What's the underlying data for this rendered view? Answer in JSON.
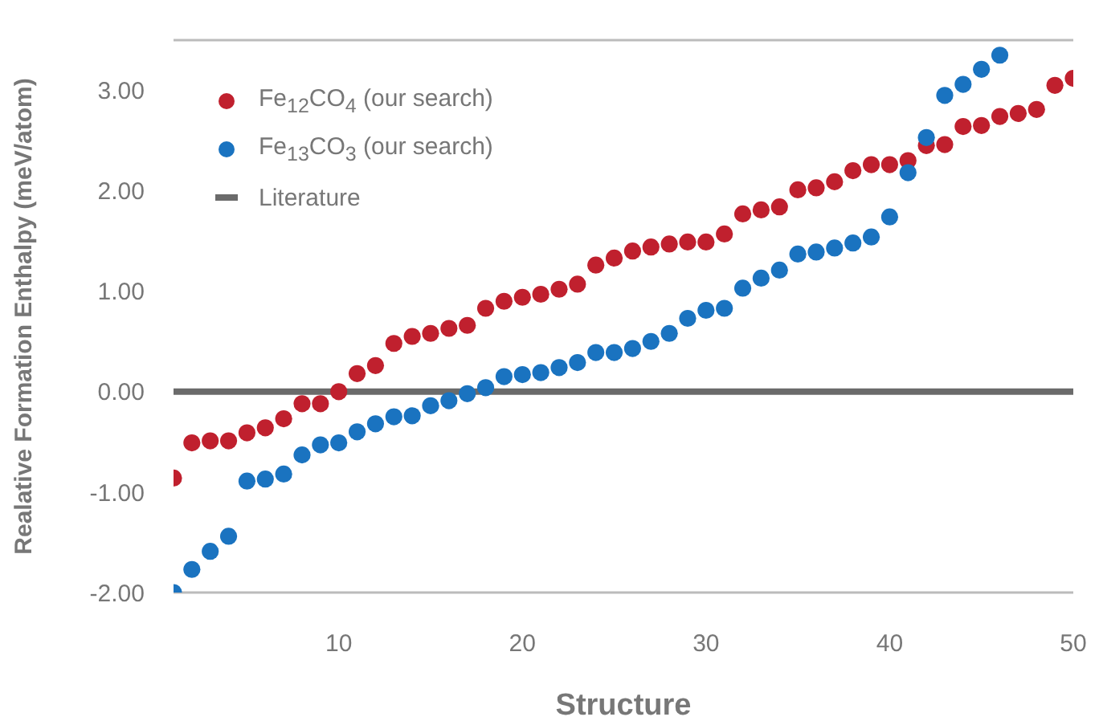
{
  "chart_data": {
    "type": "scatter",
    "xlabel": "Structure",
    "ylabel": "Realative Formation Enthalpy (meV/atom)",
    "xlim": [
      1,
      50
    ],
    "xticks": [
      10,
      20,
      30,
      40,
      50
    ],
    "ylim": [
      -2,
      3.5
    ],
    "yticks": [
      {
        "value": -2,
        "label": "-2.00"
      },
      {
        "value": -1,
        "label": "-1.00"
      },
      {
        "value": 0,
        "label": "0.00"
      },
      {
        "value": 1,
        "label": "1.00"
      },
      {
        "value": 2,
        "label": "2.00"
      },
      {
        "value": 3,
        "label": "3.00"
      }
    ],
    "grid": false,
    "legend": "top left",
    "marker": "circle",
    "series": [
      {
        "name": "Fe$_{12}$CO$_{4}$  (our search)",
        "color": "#c0202e",
        "x": [
          1,
          2,
          3,
          4,
          5,
          6,
          7,
          8,
          9,
          10,
          11,
          12,
          13,
          14,
          15,
          16,
          17,
          18,
          19,
          20,
          21,
          22,
          23,
          24,
          25,
          26,
          27,
          28,
          29,
          30,
          31,
          32,
          33,
          34,
          35,
          36,
          37,
          38,
          39,
          40,
          41,
          42,
          43,
          44,
          45,
          46,
          47,
          48,
          49,
          50
        ],
        "values": [
          -0.86,
          -0.51,
          -0.49,
          -0.49,
          -0.41,
          -0.36,
          -0.27,
          -0.12,
          -0.12,
          0.0,
          0.18,
          0.26,
          0.48,
          0.55,
          0.58,
          0.63,
          0.66,
          0.83,
          0.9,
          0.94,
          0.97,
          1.02,
          1.07,
          1.26,
          1.33,
          1.4,
          1.44,
          1.47,
          1.49,
          1.49,
          1.57,
          1.77,
          1.81,
          1.84,
          2.01,
          2.03,
          2.09,
          2.2,
          2.26,
          2.26,
          2.3,
          2.45,
          2.46,
          2.64,
          2.65,
          2.74,
          2.77,
          2.81,
          3.05,
          3.12
        ]
      },
      {
        "name": "Fe$_{13}$CO$_{3}$ (our search)",
        "color": "#1a73c0",
        "x": [
          1,
          2,
          3,
          4,
          5,
          6,
          7,
          8,
          9,
          10,
          11,
          12,
          13,
          14,
          15,
          16,
          17,
          18,
          19,
          20,
          21,
          22,
          23,
          24,
          25,
          26,
          27,
          28,
          29,
          30,
          31,
          32,
          33,
          34,
          35,
          36,
          37,
          38,
          39,
          40,
          41,
          42,
          43,
          44,
          45,
          46
        ],
        "values": [
          -2.0,
          -1.77,
          -1.59,
          -1.44,
          -0.89,
          -0.87,
          -0.82,
          -0.63,
          -0.53,
          -0.51,
          -0.4,
          -0.32,
          -0.25,
          -0.24,
          -0.14,
          -0.09,
          -0.02,
          0.04,
          0.15,
          0.17,
          0.19,
          0.24,
          0.29,
          0.39,
          0.39,
          0.43,
          0.5,
          0.58,
          0.73,
          0.81,
          0.83,
          1.03,
          1.13,
          1.21,
          1.37,
          1.39,
          1.43,
          1.48,
          1.54,
          1.74,
          2.18,
          2.53,
          2.95,
          3.06,
          3.21,
          3.35
        ]
      },
      {
        "name": "Literature",
        "type": "line",
        "marker": "none",
        "color": "#6b6b6b",
        "x": [
          1,
          50
        ],
        "values": [
          0,
          0
        ]
      }
    ]
  }
}
